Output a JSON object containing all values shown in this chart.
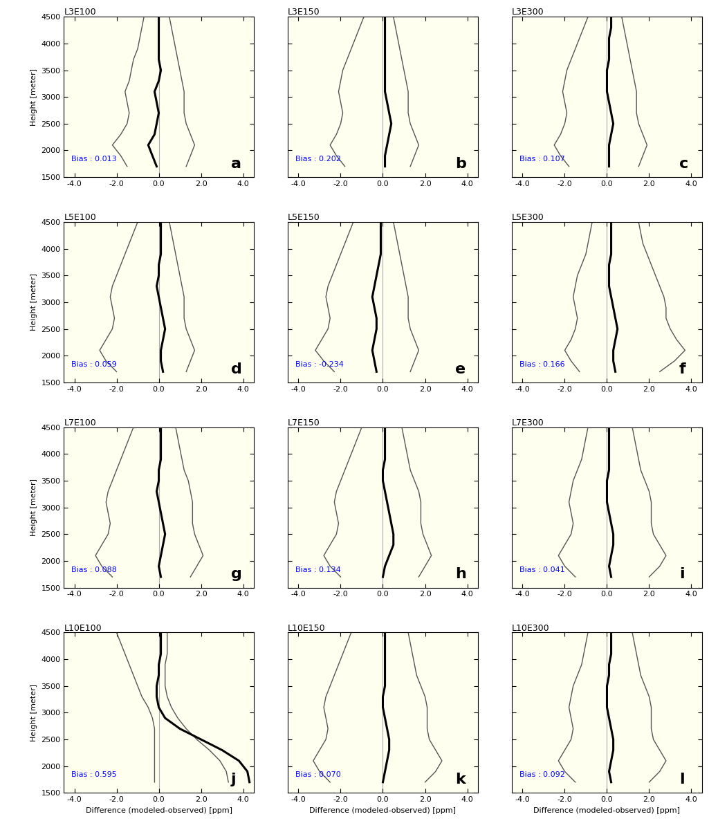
{
  "panels": [
    {
      "title": "L3E100",
      "label": "a",
      "bias": "0.013",
      "heights": [
        1700,
        1900,
        2100,
        2300,
        2500,
        2700,
        2900,
        3100,
        3300,
        3500,
        3700,
        3900,
        4100,
        4300,
        4500
      ],
      "mean": [
        -0.1,
        -0.3,
        -0.5,
        -0.2,
        -0.1,
        0.0,
        -0.1,
        -0.2,
        0.0,
        0.1,
        0.0,
        0.0,
        0.0,
        0.0,
        0.0
      ],
      "std_lo": [
        -1.5,
        -1.8,
        -2.2,
        -1.8,
        -1.5,
        -1.4,
        -1.5,
        -1.6,
        -1.4,
        -1.3,
        -1.2,
        -1.0,
        -0.9,
        -0.8,
        -0.7
      ],
      "std_hi": [
        1.3,
        1.5,
        1.7,
        1.5,
        1.3,
        1.2,
        1.2,
        1.2,
        1.1,
        1.0,
        0.9,
        0.8,
        0.7,
        0.6,
        0.5
      ]
    },
    {
      "title": "L3E150",
      "label": "b",
      "bias": "0.202",
      "heights": [
        1700,
        1900,
        2100,
        2300,
        2500,
        2700,
        2900,
        3100,
        3300,
        3500,
        3700,
        3900,
        4100,
        4300,
        4500
      ],
      "mean": [
        0.1,
        0.1,
        0.2,
        0.3,
        0.4,
        0.3,
        0.2,
        0.1,
        0.1,
        0.1,
        0.1,
        0.1,
        0.1,
        0.1,
        0.1
      ],
      "std_lo": [
        -1.8,
        -2.2,
        -2.5,
        -2.2,
        -2.0,
        -1.9,
        -2.0,
        -2.1,
        -2.0,
        -1.9,
        -1.7,
        -1.5,
        -1.3,
        -1.1,
        -0.9
      ],
      "std_hi": [
        1.3,
        1.5,
        1.7,
        1.5,
        1.3,
        1.2,
        1.2,
        1.2,
        1.1,
        1.0,
        0.9,
        0.8,
        0.7,
        0.6,
        0.5
      ]
    },
    {
      "title": "L3E300",
      "label": "c",
      "bias": "0.107",
      "heights": [
        1700,
        1900,
        2100,
        2300,
        2500,
        2700,
        2900,
        3100,
        3300,
        3500,
        3700,
        3900,
        4100,
        4300,
        4500
      ],
      "mean": [
        0.1,
        0.1,
        0.1,
        0.2,
        0.3,
        0.2,
        0.1,
        0.0,
        0.0,
        0.0,
        0.1,
        0.1,
        0.1,
        0.2,
        0.2
      ],
      "std_lo": [
        -1.8,
        -2.2,
        -2.5,
        -2.2,
        -2.0,
        -1.9,
        -2.0,
        -2.1,
        -2.0,
        -1.9,
        -1.7,
        -1.5,
        -1.3,
        -1.1,
        -0.9
      ],
      "std_hi": [
        1.5,
        1.7,
        1.9,
        1.7,
        1.5,
        1.4,
        1.4,
        1.4,
        1.3,
        1.2,
        1.1,
        1.0,
        0.9,
        0.8,
        0.7
      ]
    },
    {
      "title": "L5E100",
      "label": "d",
      "bias": "0.059",
      "heights": [
        1700,
        1900,
        2100,
        2300,
        2500,
        2700,
        2900,
        3100,
        3300,
        3500,
        3700,
        3900,
        4100,
        4300,
        4500
      ],
      "mean": [
        0.2,
        0.1,
        0.1,
        0.2,
        0.3,
        0.2,
        0.1,
        0.0,
        -0.1,
        0.0,
        0.0,
        0.1,
        0.1,
        0.1,
        0.1
      ],
      "std_lo": [
        -2.0,
        -2.5,
        -2.8,
        -2.5,
        -2.2,
        -2.1,
        -2.2,
        -2.3,
        -2.2,
        -2.0,
        -1.8,
        -1.6,
        -1.4,
        -1.2,
        -1.0
      ],
      "std_hi": [
        1.3,
        1.5,
        1.7,
        1.5,
        1.3,
        1.2,
        1.2,
        1.2,
        1.1,
        1.0,
        0.9,
        0.8,
        0.7,
        0.6,
        0.5
      ]
    },
    {
      "title": "L5E150",
      "label": "e",
      "bias": "-0.234",
      "heights": [
        1700,
        1900,
        2100,
        2300,
        2500,
        2700,
        2900,
        3100,
        3300,
        3500,
        3700,
        3900,
        4100,
        4300,
        4500
      ],
      "mean": [
        -0.3,
        -0.4,
        -0.5,
        -0.4,
        -0.3,
        -0.3,
        -0.4,
        -0.5,
        -0.4,
        -0.3,
        -0.2,
        -0.1,
        -0.1,
        -0.1,
        -0.1
      ],
      "std_lo": [
        -2.3,
        -2.8,
        -3.2,
        -2.9,
        -2.6,
        -2.5,
        -2.6,
        -2.7,
        -2.6,
        -2.4,
        -2.2,
        -2.0,
        -1.8,
        -1.6,
        -1.4
      ],
      "std_hi": [
        1.3,
        1.5,
        1.7,
        1.5,
        1.3,
        1.2,
        1.2,
        1.2,
        1.1,
        1.0,
        0.9,
        0.8,
        0.7,
        0.6,
        0.5
      ]
    },
    {
      "title": "L5E300",
      "label": "f",
      "bias": "0.166",
      "heights": [
        1700,
        1900,
        2100,
        2300,
        2500,
        2700,
        2900,
        3100,
        3300,
        3500,
        3700,
        3900,
        4100,
        4300,
        4500
      ],
      "mean": [
        0.4,
        0.3,
        0.3,
        0.4,
        0.5,
        0.4,
        0.3,
        0.2,
        0.1,
        0.1,
        0.1,
        0.2,
        0.2,
        0.2,
        0.2
      ],
      "std_lo": [
        -1.3,
        -1.7,
        -2.0,
        -1.7,
        -1.5,
        -1.4,
        -1.5,
        -1.6,
        -1.5,
        -1.4,
        -1.2,
        -1.0,
        -0.9,
        -0.8,
        -0.7
      ],
      "std_hi": [
        2.5,
        3.2,
        3.7,
        3.3,
        3.0,
        2.8,
        2.8,
        2.7,
        2.5,
        2.3,
        2.1,
        1.9,
        1.7,
        1.6,
        1.5
      ]
    },
    {
      "title": "L7E100",
      "label": "g",
      "bias": "0.088",
      "heights": [
        1700,
        1900,
        2100,
        2300,
        2500,
        2700,
        2900,
        3100,
        3300,
        3500,
        3700,
        3900,
        4100,
        4300,
        4500
      ],
      "mean": [
        0.1,
        0.0,
        0.1,
        0.2,
        0.3,
        0.2,
        0.1,
        0.0,
        -0.1,
        0.0,
        0.0,
        0.1,
        0.1,
        0.1,
        0.1
      ],
      "std_lo": [
        -2.2,
        -2.7,
        -3.0,
        -2.7,
        -2.4,
        -2.3,
        -2.4,
        -2.5,
        -2.4,
        -2.2,
        -2.0,
        -1.8,
        -1.6,
        -1.4,
        -1.2
      ],
      "std_hi": [
        1.5,
        1.8,
        2.1,
        1.9,
        1.7,
        1.6,
        1.6,
        1.6,
        1.5,
        1.4,
        1.2,
        1.1,
        1.0,
        0.9,
        0.8
      ]
    },
    {
      "title": "L7E150",
      "label": "h",
      "bias": "0.134",
      "heights": [
        1700,
        1900,
        2100,
        2300,
        2500,
        2700,
        2900,
        3100,
        3300,
        3500,
        3700,
        3900,
        4100,
        4300,
        4500
      ],
      "mean": [
        0.0,
        0.1,
        0.3,
        0.5,
        0.5,
        0.4,
        0.3,
        0.2,
        0.1,
        0.0,
        0.0,
        0.1,
        0.1,
        0.1,
        0.1
      ],
      "std_lo": [
        -2.0,
        -2.5,
        -2.8,
        -2.5,
        -2.2,
        -2.1,
        -2.2,
        -2.3,
        -2.2,
        -2.0,
        -1.8,
        -1.6,
        -1.4,
        -1.2,
        -1.0
      ],
      "std_hi": [
        1.7,
        2.0,
        2.3,
        2.1,
        1.9,
        1.8,
        1.8,
        1.8,
        1.7,
        1.5,
        1.3,
        1.2,
        1.1,
        1.0,
        0.9
      ]
    },
    {
      "title": "L7E300",
      "label": "i",
      "bias": "0.041",
      "heights": [
        1700,
        1900,
        2100,
        2300,
        2500,
        2700,
        2900,
        3100,
        3300,
        3500,
        3700,
        3900,
        4100,
        4300,
        4500
      ],
      "mean": [
        0.2,
        0.1,
        0.2,
        0.3,
        0.3,
        0.2,
        0.1,
        0.0,
        0.0,
        0.0,
        0.1,
        0.1,
        0.1,
        0.1,
        0.1
      ],
      "std_lo": [
        -1.5,
        -2.0,
        -2.3,
        -2.0,
        -1.7,
        -1.6,
        -1.7,
        -1.8,
        -1.7,
        -1.6,
        -1.4,
        -1.2,
        -1.1,
        -1.0,
        -0.9
      ],
      "std_hi": [
        2.0,
        2.5,
        2.8,
        2.5,
        2.2,
        2.1,
        2.1,
        2.1,
        2.0,
        1.8,
        1.6,
        1.5,
        1.4,
        1.3,
        1.2
      ]
    },
    {
      "title": "L10E100",
      "label": "j",
      "bias": "0.595",
      "heights": [
        1700,
        1900,
        2100,
        2300,
        2500,
        2700,
        2900,
        3100,
        3300,
        3500,
        3700,
        3900,
        4100,
        4300,
        4500
      ],
      "mean": [
        4.3,
        4.2,
        3.8,
        3.0,
        2.0,
        1.0,
        0.3,
        0.0,
        -0.1,
        -0.1,
        0.0,
        0.0,
        0.1,
        0.1,
        0.1
      ],
      "std_lo": [
        -0.2,
        -0.2,
        -0.2,
        -0.2,
        -0.2,
        -0.2,
        -0.3,
        -0.5,
        -0.8,
        -1.0,
        -1.2,
        -1.4,
        -1.6,
        -1.8,
        -2.0
      ],
      "std_hi": [
        3.3,
        3.2,
        2.9,
        2.4,
        1.8,
        1.3,
        0.9,
        0.6,
        0.4,
        0.3,
        0.3,
        0.3,
        0.4,
        0.4,
        0.4
      ]
    },
    {
      "title": "L10E150",
      "label": "k",
      "bias": "0.070",
      "heights": [
        1700,
        1900,
        2100,
        2300,
        2500,
        2700,
        2900,
        3100,
        3300,
        3500,
        3700,
        3900,
        4100,
        4300,
        4500
      ],
      "mean": [
        0.0,
        0.1,
        0.2,
        0.3,
        0.3,
        0.2,
        0.1,
        0.0,
        0.0,
        0.1,
        0.1,
        0.1,
        0.1,
        0.1,
        0.1
      ],
      "std_lo": [
        -2.5,
        -3.0,
        -3.3,
        -3.0,
        -2.7,
        -2.6,
        -2.7,
        -2.8,
        -2.7,
        -2.5,
        -2.3,
        -2.1,
        -1.9,
        -1.7,
        -1.5
      ],
      "std_hi": [
        2.0,
        2.5,
        2.8,
        2.5,
        2.2,
        2.1,
        2.1,
        2.1,
        2.0,
        1.8,
        1.6,
        1.5,
        1.4,
        1.3,
        1.2
      ]
    },
    {
      "title": "L10E300",
      "label": "l",
      "bias": "0.092",
      "heights": [
        1700,
        1900,
        2100,
        2300,
        2500,
        2700,
        2900,
        3100,
        3300,
        3500,
        3700,
        3900,
        4100,
        4300,
        4500
      ],
      "mean": [
        0.2,
        0.1,
        0.2,
        0.3,
        0.3,
        0.2,
        0.1,
        0.0,
        0.0,
        0.0,
        0.1,
        0.1,
        0.2,
        0.2,
        0.2
      ],
      "std_lo": [
        -1.5,
        -2.0,
        -2.3,
        -2.0,
        -1.7,
        -1.6,
        -1.7,
        -1.8,
        -1.7,
        -1.6,
        -1.4,
        -1.2,
        -1.1,
        -1.0,
        -0.9
      ],
      "std_hi": [
        2.0,
        2.5,
        2.8,
        2.5,
        2.2,
        2.1,
        2.1,
        2.1,
        2.0,
        1.8,
        1.6,
        1.5,
        1.4,
        1.3,
        1.2
      ]
    }
  ],
  "xlim": [
    -4.5,
    4.5
  ],
  "xticks": [
    -4.0,
    -2.0,
    0.0,
    2.0,
    4.0
  ],
  "ylim": [
    1500,
    4500
  ],
  "yticks": [
    1500,
    2000,
    2500,
    3000,
    3500,
    4000,
    4500
  ],
  "xlabel": "Difference (modeled-observed) [ppm]",
  "ylabel": "Height [meter]",
  "mean_color": "black",
  "std_color": "#555555",
  "bias_color": "blue",
  "vline_color": "#aaaaaa",
  "bg_color": "#fffff0",
  "title_fontsize": 9,
  "label_fontsize": 16,
  "tick_fontsize": 8,
  "axis_fontsize": 8,
  "bias_fontsize": 8
}
